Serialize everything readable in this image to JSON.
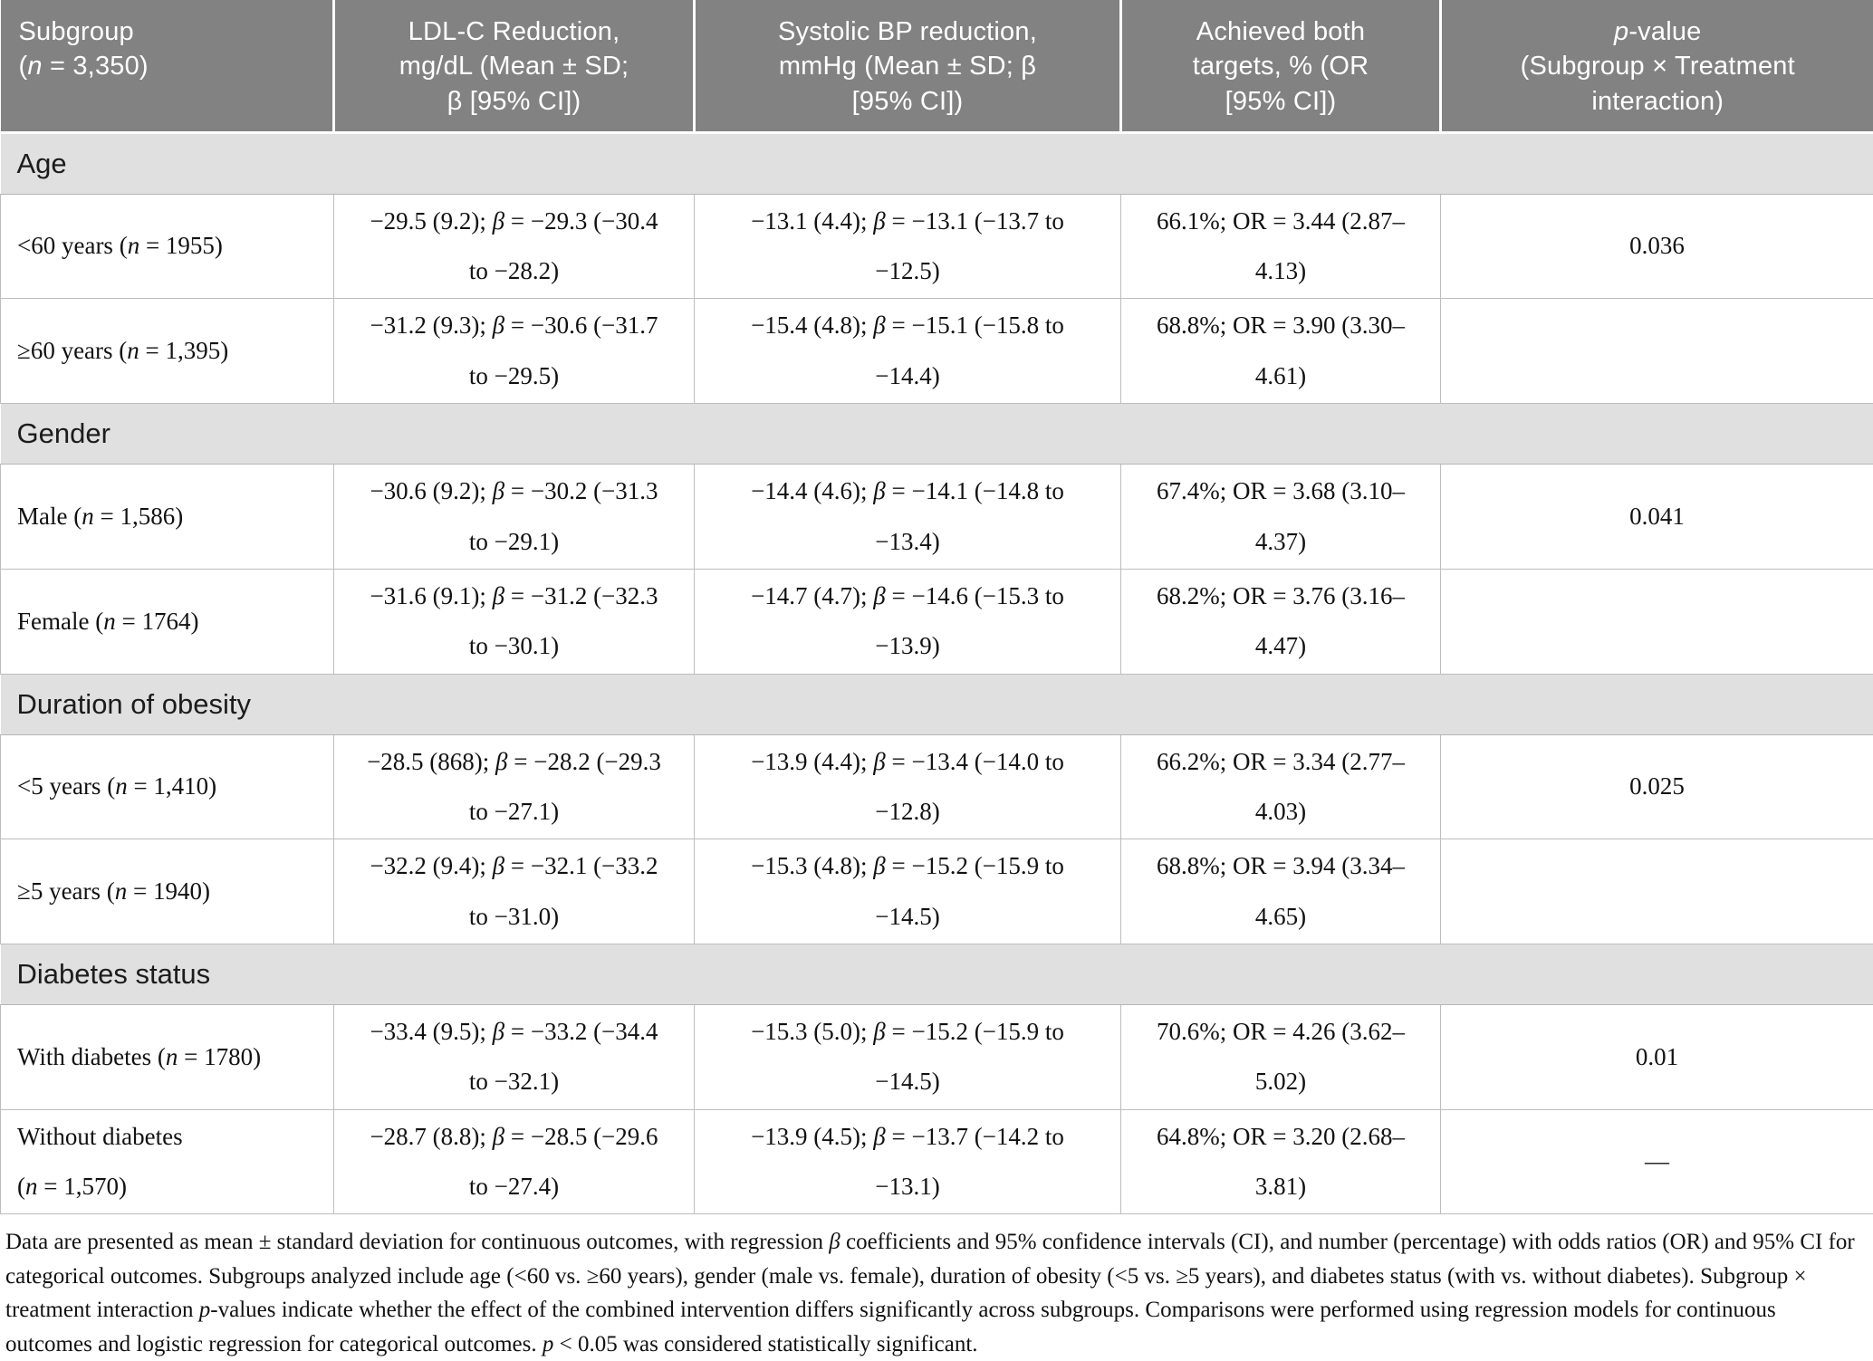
{
  "colors": {
    "header_bg": "#828282",
    "header_text": "#ffffff",
    "section_bg": "#e0e0e0",
    "border": "#bdbdbd",
    "body_text": "#111111"
  },
  "table": {
    "headers": [
      [
        {
          "t": "Subgroup\n("
        },
        {
          "t": "n",
          "i": true
        },
        {
          "t": " = 3,350)"
        }
      ],
      [
        {
          "t": "LDL-C Reduction,\nmg/dL (Mean ± SD;\nβ [95% CI])"
        }
      ],
      [
        {
          "t": "Systolic BP reduction,\nmmHg (Mean ± SD; β\n[95% CI])"
        }
      ],
      [
        {
          "t": "Achieved both\ntargets, % (OR\n[95% CI])"
        }
      ],
      [
        {
          "t": "p",
          "i": true
        },
        {
          "t": "-value\n(Subgroup × Treatment\ninteraction)"
        }
      ]
    ],
    "sections": [
      {
        "title": "Age",
        "rows": [
          {
            "subgroup": [
              {
                "t": "<60 years ("
              },
              {
                "t": "n",
                "i": true
              },
              {
                "t": " = 1955)"
              }
            ],
            "ldl": [
              {
                "t": "−29.5 (9.2); "
              },
              {
                "t": "β",
                "i": true
              },
              {
                "t": " = −29.3 (−30.4\nto −28.2)"
              }
            ],
            "bp": [
              {
                "t": "−13.1 (4.4); "
              },
              {
                "t": "β",
                "i": true
              },
              {
                "t": " = −13.1 (−13.7 to\n−12.5)"
              }
            ],
            "both": [
              {
                "t": "66.1%; OR = 3.44 (2.87–\n4.13)"
              }
            ],
            "p": "0.036"
          },
          {
            "subgroup": [
              {
                "t": "≥60 years ("
              },
              {
                "t": "n",
                "i": true
              },
              {
                "t": " = 1,395)"
              }
            ],
            "ldl": [
              {
                "t": "−31.2 (9.3); "
              },
              {
                "t": "β",
                "i": true
              },
              {
                "t": " = −30.6 (−31.7\nto −29.5)"
              }
            ],
            "bp": [
              {
                "t": "−15.4 (4.8); "
              },
              {
                "t": "β",
                "i": true
              },
              {
                "t": " = −15.1 (−15.8 to\n−14.4)"
              }
            ],
            "both": [
              {
                "t": "68.8%; OR = 3.90 (3.30–\n4.61)"
              }
            ],
            "p": ""
          }
        ]
      },
      {
        "title": "Gender",
        "rows": [
          {
            "subgroup": [
              {
                "t": "Male ("
              },
              {
                "t": "n",
                "i": true
              },
              {
                "t": " = 1,586)"
              }
            ],
            "ldl": [
              {
                "t": "−30.6 (9.2); "
              },
              {
                "t": "β",
                "i": true
              },
              {
                "t": " = −30.2 (−31.3\nto −29.1)"
              }
            ],
            "bp": [
              {
                "t": "−14.4 (4.6); "
              },
              {
                "t": "β",
                "i": true
              },
              {
                "t": " = −14.1 (−14.8 to\n−13.4)"
              }
            ],
            "both": [
              {
                "t": "67.4%; OR = 3.68 (3.10–\n4.37)"
              }
            ],
            "p": "0.041"
          },
          {
            "subgroup": [
              {
                "t": "Female ("
              },
              {
                "t": "n",
                "i": true
              },
              {
                "t": " = 1764)"
              }
            ],
            "ldl": [
              {
                "t": "−31.6 (9.1); "
              },
              {
                "t": "β",
                "i": true
              },
              {
                "t": " = −31.2 (−32.3\nto −30.1)"
              }
            ],
            "bp": [
              {
                "t": "−14.7 (4.7); "
              },
              {
                "t": "β",
                "i": true
              },
              {
                "t": " = −14.6 (−15.3 to\n−13.9)"
              }
            ],
            "both": [
              {
                "t": "68.2%; OR = 3.76 (3.16–\n4.47)"
              }
            ],
            "p": ""
          }
        ]
      },
      {
        "title": "Duration of obesity",
        "rows": [
          {
            "subgroup": [
              {
                "t": "<5 years ("
              },
              {
                "t": "n",
                "i": true
              },
              {
                "t": " = 1,410)"
              }
            ],
            "ldl": [
              {
                "t": "−28.5 (868); "
              },
              {
                "t": "β",
                "i": true
              },
              {
                "t": " = −28.2 (−29.3\nto −27.1)"
              }
            ],
            "bp": [
              {
                "t": "−13.9 (4.4); "
              },
              {
                "t": "β",
                "i": true
              },
              {
                "t": " = −13.4 (−14.0 to\n−12.8)"
              }
            ],
            "both": [
              {
                "t": "66.2%; OR = 3.34 (2.77–\n4.03)"
              }
            ],
            "p": "0.025"
          },
          {
            "subgroup": [
              {
                "t": "≥5 years ("
              },
              {
                "t": "n",
                "i": true
              },
              {
                "t": " = 1940)"
              }
            ],
            "ldl": [
              {
                "t": "−32.2 (9.4); "
              },
              {
                "t": "β",
                "i": true
              },
              {
                "t": " = −32.1 (−33.2\nto −31.0)"
              }
            ],
            "bp": [
              {
                "t": "−15.3 (4.8); "
              },
              {
                "t": "β",
                "i": true
              },
              {
                "t": " = −15.2 (−15.9 to\n−14.5)"
              }
            ],
            "both": [
              {
                "t": "68.8%; OR = 3.94 (3.34–\n4.65)"
              }
            ],
            "p": ""
          }
        ]
      },
      {
        "title": "Diabetes status",
        "rows": [
          {
            "subgroup": [
              {
                "t": "With diabetes ("
              },
              {
                "t": "n",
                "i": true
              },
              {
                "t": " = 1780)"
              }
            ],
            "ldl": [
              {
                "t": "−33.4 (9.5); "
              },
              {
                "t": "β",
                "i": true
              },
              {
                "t": " = −33.2 (−34.4\nto −32.1)"
              }
            ],
            "bp": [
              {
                "t": "−15.3 (5.0); "
              },
              {
                "t": "β",
                "i": true
              },
              {
                "t": " = −15.2 (−15.9 to\n−14.5)"
              }
            ],
            "both": [
              {
                "t": "70.6%; OR = 4.26 (3.62–\n5.02)"
              }
            ],
            "p": "0.01"
          },
          {
            "subgroup": [
              {
                "t": "Without diabetes\n("
              },
              {
                "t": "n",
                "i": true
              },
              {
                "t": " = 1,570)"
              }
            ],
            "ldl": [
              {
                "t": "−28.7 (8.8); "
              },
              {
                "t": "β",
                "i": true
              },
              {
                "t": " = −28.5 (−29.6\nto −27.4)"
              }
            ],
            "bp": [
              {
                "t": "−13.9 (4.5); "
              },
              {
                "t": "β",
                "i": true
              },
              {
                "t": " = −13.7 (−14.2 to\n−13.1)"
              }
            ],
            "both": [
              {
                "t": "64.8%; OR = 3.20 (2.68–\n3.81)"
              }
            ],
            "p": "—"
          }
        ]
      }
    ]
  },
  "footnote": [
    {
      "t": "Data are presented as mean ± standard deviation for continuous outcomes, with regression "
    },
    {
      "t": "β",
      "i": true
    },
    {
      "t": " coefficients and 95% confidence intervals (CI), and number (percentage) with odds ratios (OR) and 95% CI for categorical outcomes. Subgroups analyzed include age (<60 vs. ≥60 years), gender (male vs. female), duration of obesity (<5 vs. ≥5 years), and diabetes status (with vs. without diabetes). Subgroup × treatment interaction "
    },
    {
      "t": "p",
      "i": true
    },
    {
      "t": "-values indicate whether the effect of the combined intervention differs significantly across subgroups. Comparisons were performed using regression models for continuous outcomes and logistic regression for categorical outcomes. "
    },
    {
      "t": "p",
      "i": true
    },
    {
      "t": " < 0.05 was considered statistically significant."
    }
  ]
}
